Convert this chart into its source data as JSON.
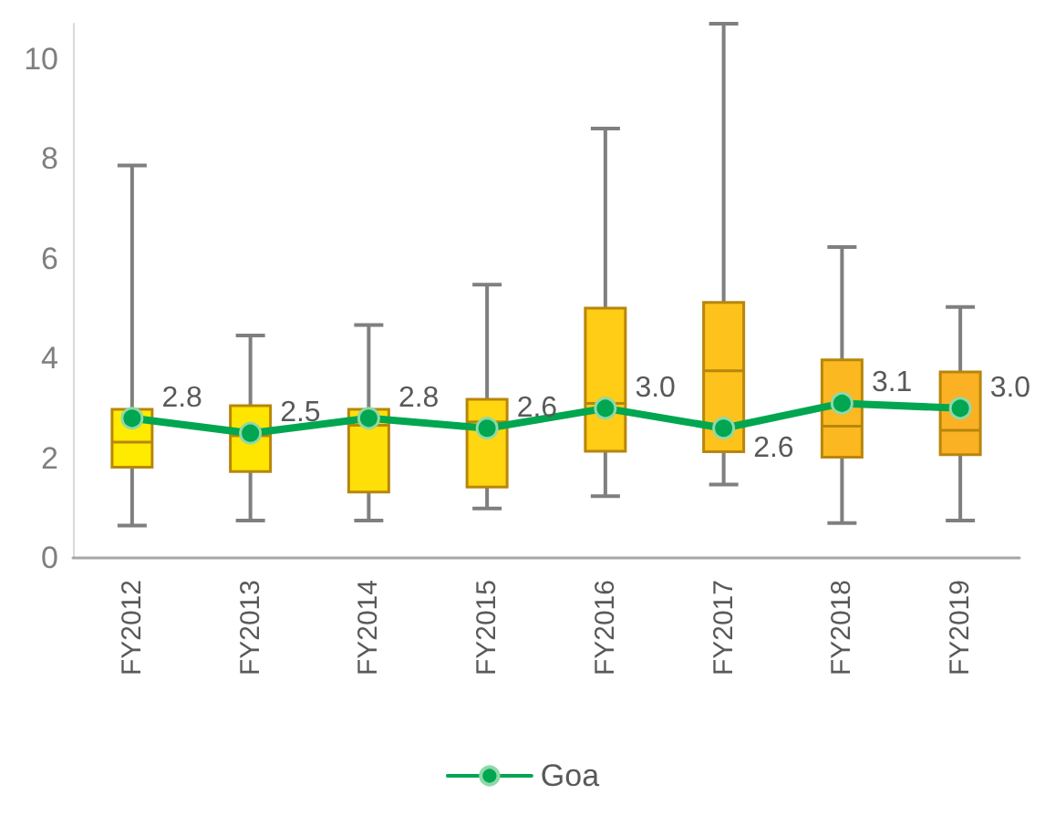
{
  "chart_data": {
    "type": "box",
    "categories": [
      "FY2012",
      "FY2013",
      "FY2014",
      "FY2015",
      "FY2016",
      "FY2017",
      "FY2018",
      "FY2019"
    ],
    "series": [
      {
        "type": "box",
        "colors": [
          "#ffeb00",
          "#ffe600",
          "#ffdf08",
          "#ffd60f",
          "#ffcc16",
          "#fec21c",
          "#fcb820",
          "#fbb124"
        ],
        "boxes": [
          {
            "low": 0.65,
            "q1": 1.82,
            "median": 2.32,
            "q3": 2.98,
            "high": 7.87
          },
          {
            "low": 0.75,
            "q1": 1.73,
            "median": 2.45,
            "q3": 3.05,
            "high": 4.46
          },
          {
            "low": 0.75,
            "q1": 1.32,
            "median": 2.66,
            "q3": 2.98,
            "high": 4.67
          },
          {
            "low": 0.99,
            "q1": 1.42,
            "median": 2.73,
            "q3": 3.18,
            "high": 5.48
          },
          {
            "low": 1.24,
            "q1": 2.14,
            "median": 3.1,
            "q3": 5.01,
            "high": 8.61
          },
          {
            "low": 1.47,
            "q1": 2.13,
            "median": 3.75,
            "q3": 5.12,
            "high": 10.71
          },
          {
            "low": 0.7,
            "q1": 2.02,
            "median": 2.64,
            "q3": 3.97,
            "high": 6.23
          },
          {
            "low": 0.75,
            "q1": 2.07,
            "median": 2.56,
            "q3": 3.73,
            "high": 5.03
          }
        ]
      },
      {
        "type": "line",
        "name": "Goa",
        "color": "#00a650",
        "values": [
          2.8,
          2.5,
          2.8,
          2.6,
          3.0,
          2.6,
          3.1,
          3.0
        ],
        "value_labels": [
          "2.8",
          "2.5",
          "2.8",
          "2.6",
          "3.0",
          "2.6",
          "3.1",
          "3.0"
        ]
      }
    ],
    "marker": "circle",
    "ylim": [
      0,
      10.71
    ],
    "yticks": [
      0,
      2,
      4,
      6,
      8,
      10
    ],
    "grid": false,
    "legend": "bottom"
  }
}
